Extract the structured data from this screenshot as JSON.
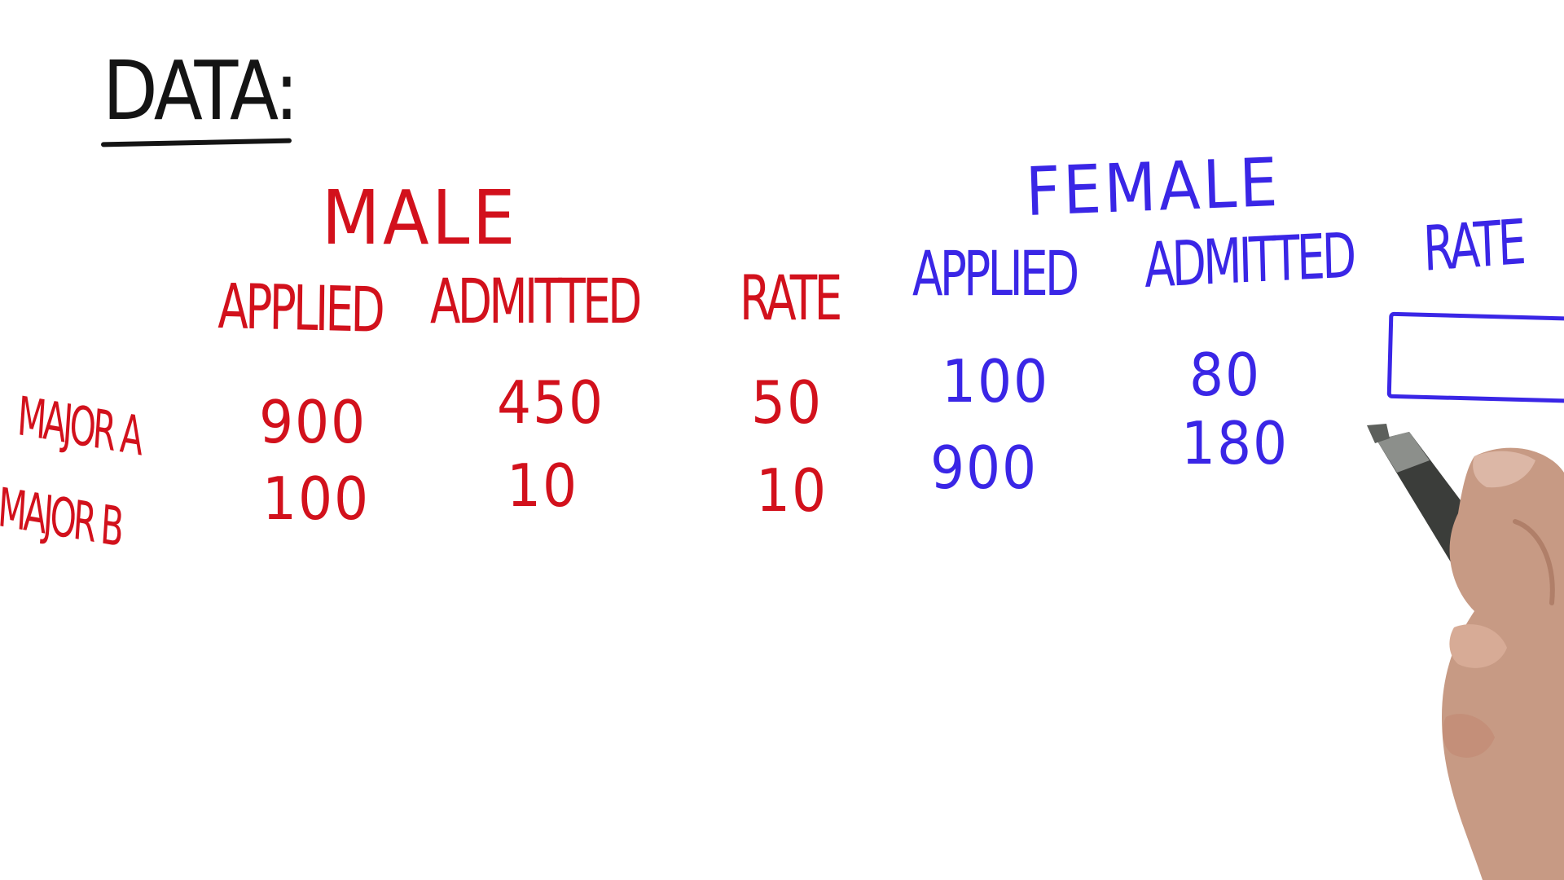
{
  "title": "DATA:",
  "male": {
    "header": "MALE",
    "columns": {
      "applied": "APPLIED",
      "admitted": "ADMITTED",
      "rate": "RATE"
    },
    "rows": {
      "major_a": {
        "applied": "900",
        "admitted": "450",
        "rate": "50"
      },
      "major_b": {
        "applied": "100",
        "admitted": "10",
        "rate": "10"
      }
    }
  },
  "female": {
    "header": "FEMALE",
    "columns": {
      "applied": "APPLIED",
      "admitted": "ADMITTED",
      "rate": "RATE"
    },
    "rows": {
      "major_a": {
        "applied": "100",
        "admitted": "80"
      },
      "major_b": {
        "applied": "900",
        "admitted": "180"
      }
    }
  },
  "row_labels": {
    "major_a": "MAJOR A",
    "major_b": "MAJOR B"
  },
  "colors": {
    "title_ink": "#141414",
    "male_ink": "#d2111c",
    "female_ink": "#3a26e6",
    "background": "#ffffff"
  },
  "icons": {
    "answer_box": "empty-rectangle",
    "hand": "hand-holding-marker"
  }
}
